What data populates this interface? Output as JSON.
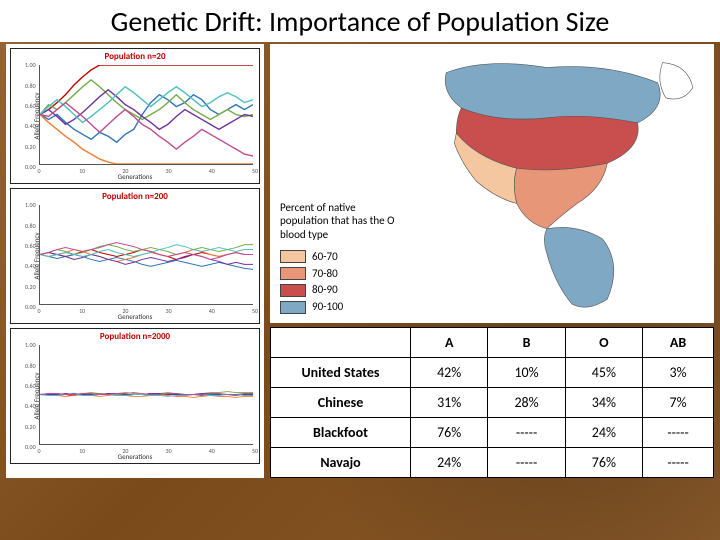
{
  "title": "Genetic Drift: Importance of Population Size",
  "charts": {
    "ylabel": "Allele Frequency",
    "xlabel": "Generations",
    "xlim": [
      0,
      50
    ],
    "ylim": [
      0,
      1
    ],
    "xticks": [
      0,
      10,
      20,
      30,
      40,
      50
    ],
    "yticks": [
      0,
      0.2,
      0.4,
      0.6,
      0.8,
      1.0
    ],
    "ytick_labels": [
      "0.00",
      "0.20",
      "0.40",
      "0.60",
      "0.80",
      "1.00"
    ],
    "line_colors": [
      "#c00000",
      "#2e75b6",
      "#70ad47",
      "#ed7d31",
      "#7030a0",
      "#4bc0c0",
      "#c04b8e"
    ],
    "title_color": "#c00000",
    "axis_color": "#555555",
    "panels": [
      {
        "title": "Population n=20",
        "line_width": 1.4,
        "series": [
          [
            0.5,
            0.55,
            0.62,
            0.7,
            0.8,
            0.88,
            0.95,
            1.0,
            1.0,
            1.0,
            1.0,
            1.0,
            1.0,
            1.0,
            1.0,
            1.0,
            1.0,
            1.0,
            1.0,
            1.0,
            1.0,
            1.0,
            1.0,
            1.0,
            1.0,
            1.0
          ],
          [
            0.5,
            0.45,
            0.5,
            0.42,
            0.35,
            0.3,
            0.25,
            0.32,
            0.28,
            0.22,
            0.3,
            0.35,
            0.5,
            0.62,
            0.7,
            0.65,
            0.58,
            0.62,
            0.7,
            0.65,
            0.55,
            0.5,
            0.55,
            0.6,
            0.55,
            0.6
          ],
          [
            0.5,
            0.6,
            0.55,
            0.62,
            0.7,
            0.78,
            0.85,
            0.78,
            0.7,
            0.62,
            0.55,
            0.5,
            0.45,
            0.5,
            0.55,
            0.62,
            0.7,
            0.62,
            0.55,
            0.5,
            0.45,
            0.5,
            0.55,
            0.5,
            0.48,
            0.5
          ],
          [
            0.5,
            0.42,
            0.35,
            0.28,
            0.22,
            0.15,
            0.1,
            0.05,
            0.02,
            0,
            0,
            0,
            0,
            0,
            0,
            0,
            0,
            0,
            0,
            0,
            0,
            0,
            0,
            0,
            0,
            0
          ],
          [
            0.5,
            0.55,
            0.48,
            0.4,
            0.45,
            0.52,
            0.6,
            0.68,
            0.75,
            0.68,
            0.6,
            0.55,
            0.48,
            0.42,
            0.35,
            0.4,
            0.48,
            0.55,
            0.5,
            0.45,
            0.4,
            0.35,
            0.4,
            0.45,
            0.5,
            0.48
          ],
          [
            0.5,
            0.58,
            0.65,
            0.58,
            0.5,
            0.42,
            0.48,
            0.55,
            0.62,
            0.7,
            0.78,
            0.72,
            0.65,
            0.58,
            0.65,
            0.72,
            0.78,
            0.72,
            0.65,
            0.58,
            0.62,
            0.68,
            0.72,
            0.68,
            0.62,
            0.65
          ],
          [
            0.5,
            0.48,
            0.55,
            0.62,
            0.55,
            0.48,
            0.4,
            0.32,
            0.4,
            0.48,
            0.55,
            0.48,
            0.4,
            0.35,
            0.28,
            0.22,
            0.15,
            0.22,
            0.28,
            0.35,
            0.3,
            0.25,
            0.2,
            0.15,
            0.1,
            0.08
          ]
        ]
      },
      {
        "title": "Population n=200",
        "line_width": 1.0,
        "series": [
          [
            0.5,
            0.52,
            0.5,
            0.48,
            0.5,
            0.53,
            0.55,
            0.52,
            0.5,
            0.48,
            0.5,
            0.52,
            0.55,
            0.53,
            0.5,
            0.48,
            0.45,
            0.48,
            0.5,
            0.52,
            0.5,
            0.48,
            0.5,
            0.52,
            0.5,
            0.5
          ],
          [
            0.5,
            0.48,
            0.46,
            0.48,
            0.5,
            0.48,
            0.45,
            0.43,
            0.45,
            0.47,
            0.45,
            0.43,
            0.4,
            0.38,
            0.4,
            0.42,
            0.44,
            0.42,
            0.4,
            0.38,
            0.4,
            0.42,
            0.4,
            0.38,
            0.36,
            0.35
          ],
          [
            0.5,
            0.52,
            0.55,
            0.53,
            0.5,
            0.52,
            0.55,
            0.58,
            0.6,
            0.58,
            0.55,
            0.53,
            0.55,
            0.57,
            0.55,
            0.53,
            0.5,
            0.52,
            0.55,
            0.57,
            0.55,
            0.53,
            0.55,
            0.57,
            0.6,
            0.6
          ],
          [
            0.5,
            0.48,
            0.5,
            0.52,
            0.55,
            0.53,
            0.5,
            0.48,
            0.45,
            0.43,
            0.45,
            0.47,
            0.5,
            0.52,
            0.5,
            0.48,
            0.5,
            0.52,
            0.55,
            0.53,
            0.5,
            0.48,
            0.5,
            0.52,
            0.5,
            0.5
          ],
          [
            0.5,
            0.52,
            0.5,
            0.48,
            0.45,
            0.47,
            0.5,
            0.48,
            0.45,
            0.43,
            0.4,
            0.42,
            0.45,
            0.47,
            0.45,
            0.43,
            0.45,
            0.47,
            0.5,
            0.48,
            0.45,
            0.43,
            0.4,
            0.42,
            0.4,
            0.4
          ],
          [
            0.5,
            0.48,
            0.5,
            0.52,
            0.5,
            0.48,
            0.5,
            0.53,
            0.55,
            0.52,
            0.5,
            0.48,
            0.5,
            0.52,
            0.55,
            0.57,
            0.6,
            0.58,
            0.55,
            0.53,
            0.55,
            0.57,
            0.55,
            0.53,
            0.55,
            0.55
          ],
          [
            0.5,
            0.52,
            0.55,
            0.57,
            0.55,
            0.53,
            0.55,
            0.57,
            0.6,
            0.62,
            0.6,
            0.58,
            0.55,
            0.53,
            0.5,
            0.48,
            0.5,
            0.52,
            0.5,
            0.48,
            0.45,
            0.47,
            0.5,
            0.52,
            0.5,
            0.5
          ]
        ]
      },
      {
        "title": "Population n=2000",
        "line_width": 0.9,
        "series": [
          [
            0.5,
            0.5,
            0.51,
            0.5,
            0.49,
            0.5,
            0.5,
            0.51,
            0.5,
            0.5,
            0.49,
            0.5,
            0.5,
            0.51,
            0.5,
            0.5,
            0.5,
            0.49,
            0.5,
            0.5,
            0.51,
            0.5,
            0.5,
            0.5,
            0.5,
            0.5
          ],
          [
            0.5,
            0.49,
            0.5,
            0.5,
            0.51,
            0.5,
            0.49,
            0.5,
            0.5,
            0.49,
            0.5,
            0.5,
            0.5,
            0.49,
            0.5,
            0.5,
            0.51,
            0.5,
            0.5,
            0.49,
            0.5,
            0.5,
            0.5,
            0.49,
            0.5,
            0.5
          ],
          [
            0.5,
            0.51,
            0.5,
            0.5,
            0.5,
            0.51,
            0.52,
            0.51,
            0.5,
            0.51,
            0.52,
            0.51,
            0.5,
            0.5,
            0.51,
            0.52,
            0.51,
            0.5,
            0.5,
            0.51,
            0.52,
            0.52,
            0.53,
            0.52,
            0.52,
            0.52
          ],
          [
            0.5,
            0.5,
            0.49,
            0.48,
            0.49,
            0.5,
            0.49,
            0.48,
            0.49,
            0.5,
            0.49,
            0.48,
            0.48,
            0.49,
            0.5,
            0.49,
            0.48,
            0.48,
            0.47,
            0.48,
            0.49,
            0.48,
            0.48,
            0.47,
            0.48,
            0.48
          ],
          [
            0.5,
            0.5,
            0.5,
            0.51,
            0.5,
            0.5,
            0.5,
            0.5,
            0.51,
            0.51,
            0.5,
            0.5,
            0.5,
            0.51,
            0.51,
            0.5,
            0.5,
            0.5,
            0.5,
            0.51,
            0.51,
            0.5,
            0.5,
            0.5,
            0.5,
            0.5
          ],
          [
            0.5,
            0.49,
            0.49,
            0.5,
            0.5,
            0.49,
            0.49,
            0.5,
            0.5,
            0.49,
            0.49,
            0.5,
            0.5,
            0.49,
            0.49,
            0.48,
            0.49,
            0.49,
            0.5,
            0.5,
            0.49,
            0.49,
            0.5,
            0.5,
            0.49,
            0.49
          ],
          [
            0.5,
            0.51,
            0.51,
            0.5,
            0.5,
            0.51,
            0.51,
            0.5,
            0.5,
            0.51,
            0.51,
            0.52,
            0.51,
            0.5,
            0.5,
            0.51,
            0.51,
            0.5,
            0.5,
            0.5,
            0.51,
            0.51,
            0.5,
            0.5,
            0.51,
            0.51
          ]
        ]
      }
    ]
  },
  "map": {
    "legend_title": "Percent of native population that has the O blood type",
    "outline_color": "#555555",
    "background": "#ffffff",
    "legend": [
      {
        "label": "60-70",
        "color": "#f4c7a1"
      },
      {
        "label": "70-80",
        "color": "#e89678"
      },
      {
        "label": "80-90",
        "color": "#c94f4f"
      },
      {
        "label": "90-100",
        "color": "#7ea8c4"
      }
    ]
  },
  "table": {
    "columns": [
      "",
      "A",
      "B",
      "O",
      "AB"
    ],
    "rows": [
      [
        "United States",
        "42%",
        "10%",
        "45%",
        "3%"
      ],
      [
        "Chinese",
        "31%",
        "28%",
        "34%",
        "7%"
      ],
      [
        "Blackfoot",
        "76%",
        "-----",
        "24%",
        "-----"
      ],
      [
        "Navajo",
        "24%",
        "-----",
        "76%",
        "-----"
      ]
    ],
    "header_fontweight": "bold",
    "cell_fontsize": 14,
    "border_color": "#000000"
  }
}
